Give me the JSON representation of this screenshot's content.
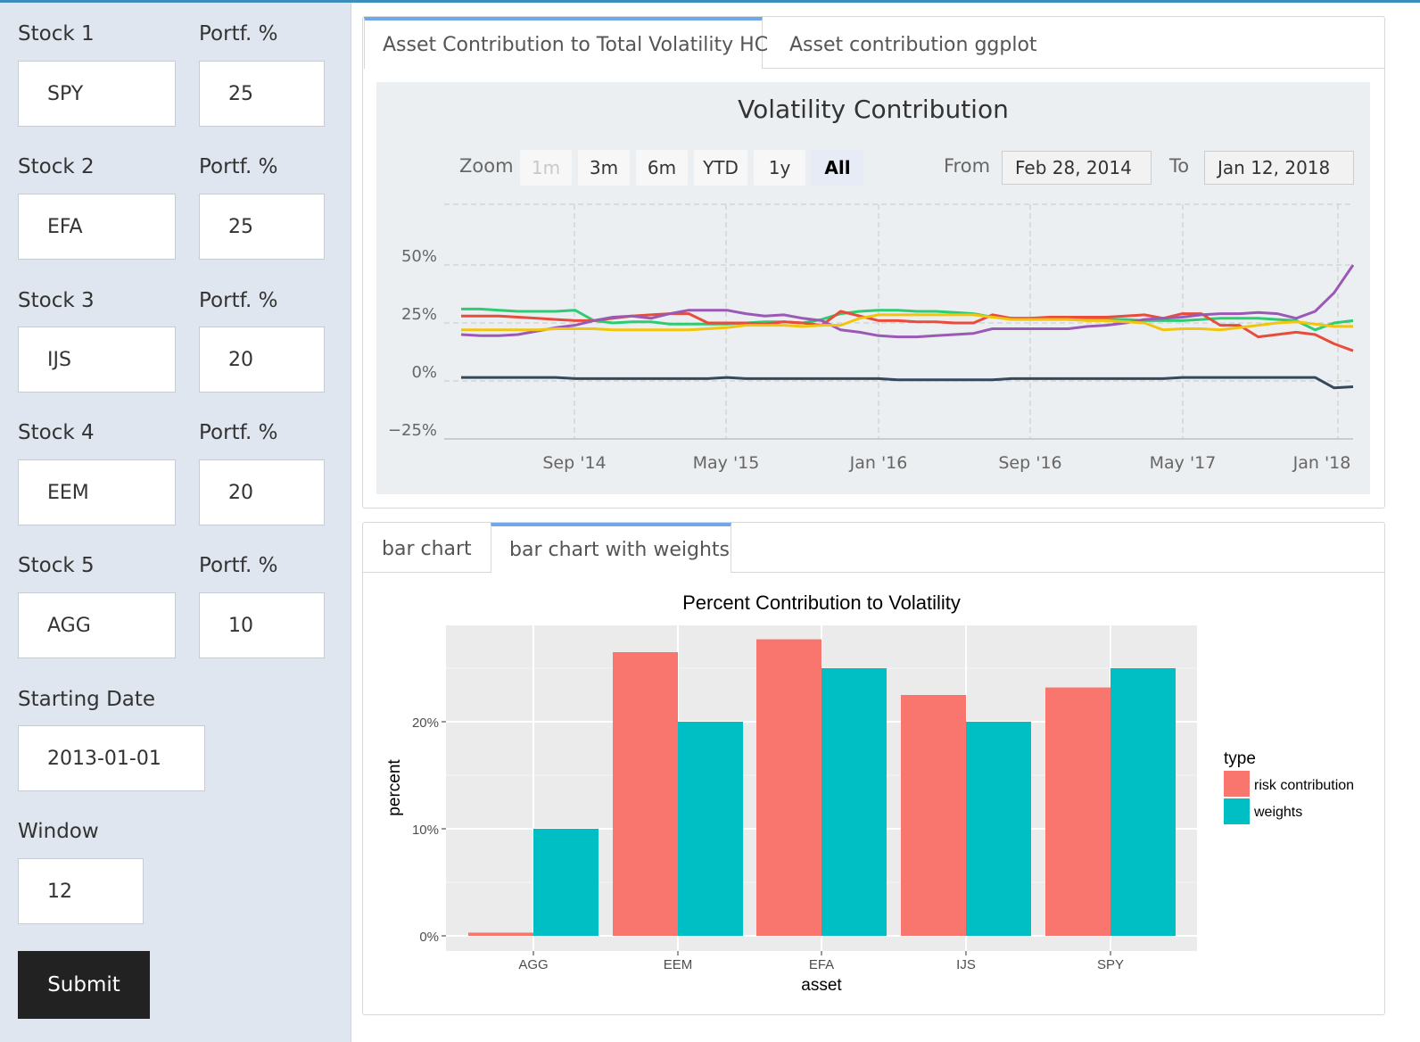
{
  "sidebar": {
    "stocks": [
      {
        "label": "Stock 1",
        "value": "SPY",
        "weight_label": "Portf. %",
        "weight": "25"
      },
      {
        "label": "Stock 2",
        "value": "EFA",
        "weight_label": "Portf. %",
        "weight": "25"
      },
      {
        "label": "Stock 3",
        "value": "IJS",
        "weight_label": "Portf. %",
        "weight": "20"
      },
      {
        "label": "Stock 4",
        "value": "EEM",
        "weight_label": "Portf. %",
        "weight": "20"
      },
      {
        "label": "Stock 5",
        "value": "AGG",
        "weight_label": "Portf. %",
        "weight": "10"
      }
    ],
    "start_date_label": "Starting Date",
    "start_date": "2013-01-01",
    "window_label": "Window",
    "window": "12",
    "submit_label": "Submit"
  },
  "top_panel": {
    "tabs": [
      "Asset Contribution to Total Volatility HC",
      "Asset contribution ggplot"
    ],
    "active_tab": 0
  },
  "bottom_panel": {
    "tabs": [
      "bar chart",
      "bar chart with weights"
    ],
    "active_tab": 1
  },
  "highchart": {
    "zoom_label": "Zoom",
    "zoom_buttons": [
      "1m",
      "3m",
      "6m",
      "YTD",
      "1y",
      "All"
    ],
    "zoom_disabled": "1m",
    "zoom_selected": "All",
    "from_label": "From",
    "from_date": "Feb 28, 2014",
    "to_label": "To",
    "to_date": "Jan 12, 2018"
  },
  "chart_data": [
    {
      "type": "line",
      "title": "Volatility Contribution",
      "x": [
        "2014-02",
        "2014-03",
        "2014-04",
        "2014-05",
        "2014-06",
        "2014-07",
        "2014-08",
        "2014-09",
        "2014-10",
        "2014-11",
        "2014-12",
        "2015-01",
        "2015-02",
        "2015-03",
        "2015-04",
        "2015-05",
        "2015-06",
        "2015-07",
        "2015-08",
        "2015-09",
        "2015-10",
        "2015-11",
        "2015-12",
        "2016-01",
        "2016-02",
        "2016-03",
        "2016-04",
        "2016-05",
        "2016-06",
        "2016-07",
        "2016-08",
        "2016-09",
        "2016-10",
        "2016-11",
        "2016-12",
        "2017-01",
        "2017-02",
        "2017-03",
        "2017-04",
        "2017-05",
        "2017-06",
        "2017-07",
        "2017-08",
        "2017-09",
        "2017-10",
        "2017-11",
        "2017-12",
        "2018-01"
      ],
      "x_ticks": [
        "Sep '14",
        "May '15",
        "Jan '16",
        "Sep '16",
        "May '17",
        "Jan '18"
      ],
      "y_ticks": [
        "50%",
        "25%",
        "0%",
        "−25%"
      ],
      "ylim": [
        -25,
        75
      ],
      "grid": true,
      "series": [
        {
          "color": "#2ecc71",
          "values": [
            31,
            31,
            30.5,
            30,
            30,
            30,
            30.5,
            26,
            25,
            25.5,
            25.5,
            24.5,
            24.5,
            24.5,
            24.5,
            25,
            25.5,
            25.5,
            25,
            26.5,
            29,
            30,
            30.5,
            30.5,
            30,
            30,
            29.5,
            29,
            27.5,
            27,
            27,
            27,
            26.5,
            26.5,
            26.5,
            26.5,
            26,
            26,
            26,
            26.5,
            27,
            27,
            27,
            26.5,
            26,
            22,
            25,
            26
          ]
        },
        {
          "color": "#e74c3c",
          "values": [
            28,
            28,
            28,
            27.5,
            27,
            26.5,
            26,
            26,
            27,
            28,
            28.5,
            29,
            29,
            25,
            25,
            25,
            24.5,
            25.5,
            25,
            24,
            30,
            28,
            26,
            26,
            25.5,
            25.5,
            25,
            25,
            28.5,
            27,
            27,
            27.5,
            27.5,
            27.5,
            27.5,
            28,
            28.5,
            27,
            29,
            29,
            24,
            24,
            19,
            20,
            21,
            20,
            16,
            13
          ]
        },
        {
          "color": "#9b59b6",
          "values": [
            20,
            19.5,
            19.5,
            20,
            21.5,
            23,
            24,
            26,
            27.5,
            28,
            27,
            29,
            30.5,
            30.5,
            30.5,
            29,
            28,
            28.5,
            27,
            26,
            22,
            21,
            19.5,
            19,
            19,
            19.5,
            20,
            20.5,
            22.5,
            22.5,
            22.5,
            22.5,
            22.5,
            23.5,
            24,
            25,
            26.5,
            27,
            27.5,
            28.5,
            29,
            29,
            29.5,
            29,
            27,
            30,
            38,
            50
          ]
        },
        {
          "color": "#f1c40f",
          "values": [
            22,
            22,
            22,
            22,
            22,
            22.5,
            22.5,
            22.5,
            22,
            22,
            22,
            22,
            22,
            22.5,
            23,
            24,
            24,
            24,
            23.5,
            24,
            24,
            27,
            28.5,
            28.5,
            28.5,
            28.5,
            28.5,
            28.5,
            27.5,
            26.5,
            26.5,
            26.5,
            26.5,
            26,
            26,
            25.5,
            25,
            22,
            22.5,
            22.5,
            22,
            23,
            24,
            25,
            25.5,
            24.5,
            23.5,
            23.5
          ]
        },
        {
          "color": "#34495e",
          "values": [
            1.5,
            1.5,
            1.5,
            1.5,
            1.5,
            1.5,
            1,
            1,
            1,
            1,
            1,
            1,
            1,
            1,
            1.5,
            1,
            1,
            1,
            1,
            1,
            1,
            1,
            1,
            0.5,
            0.5,
            0.5,
            0.5,
            0.5,
            0.5,
            1,
            1,
            1,
            1,
            1,
            1,
            1,
            1,
            1,
            1.5,
            1.5,
            1.5,
            1.5,
            1.5,
            1.5,
            1.5,
            1.5,
            -3,
            -2.5
          ]
        }
      ]
    },
    {
      "type": "bar",
      "title": "Percent Contribution to Volatility",
      "xlabel": "asset",
      "ylabel": "percent",
      "categories": [
        "AGG",
        "EEM",
        "EFA",
        "IJS",
        "SPY"
      ],
      "ylim": [
        0,
        30
      ],
      "y_ticks": [
        "0%",
        "10%",
        "20%"
      ],
      "legend_title": "type",
      "legend_position": "right",
      "series": [
        {
          "name": "risk contribution",
          "color": "#f8766d",
          "values": [
            0.3,
            26.5,
            27.7,
            22.5,
            23.2
          ]
        },
        {
          "name": "weights",
          "color": "#00bfc4",
          "values": [
            10,
            20,
            25,
            20,
            25
          ]
        }
      ]
    }
  ]
}
